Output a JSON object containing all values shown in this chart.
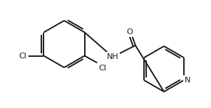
{
  "bg_color": "#ffffff",
  "line_color": "#1a1a1a",
  "line_width": 1.4,
  "figsize": [
    2.96,
    1.52
  ],
  "dpi": 100,
  "xlim": [
    0,
    296
  ],
  "ylim": [
    0,
    152
  ]
}
